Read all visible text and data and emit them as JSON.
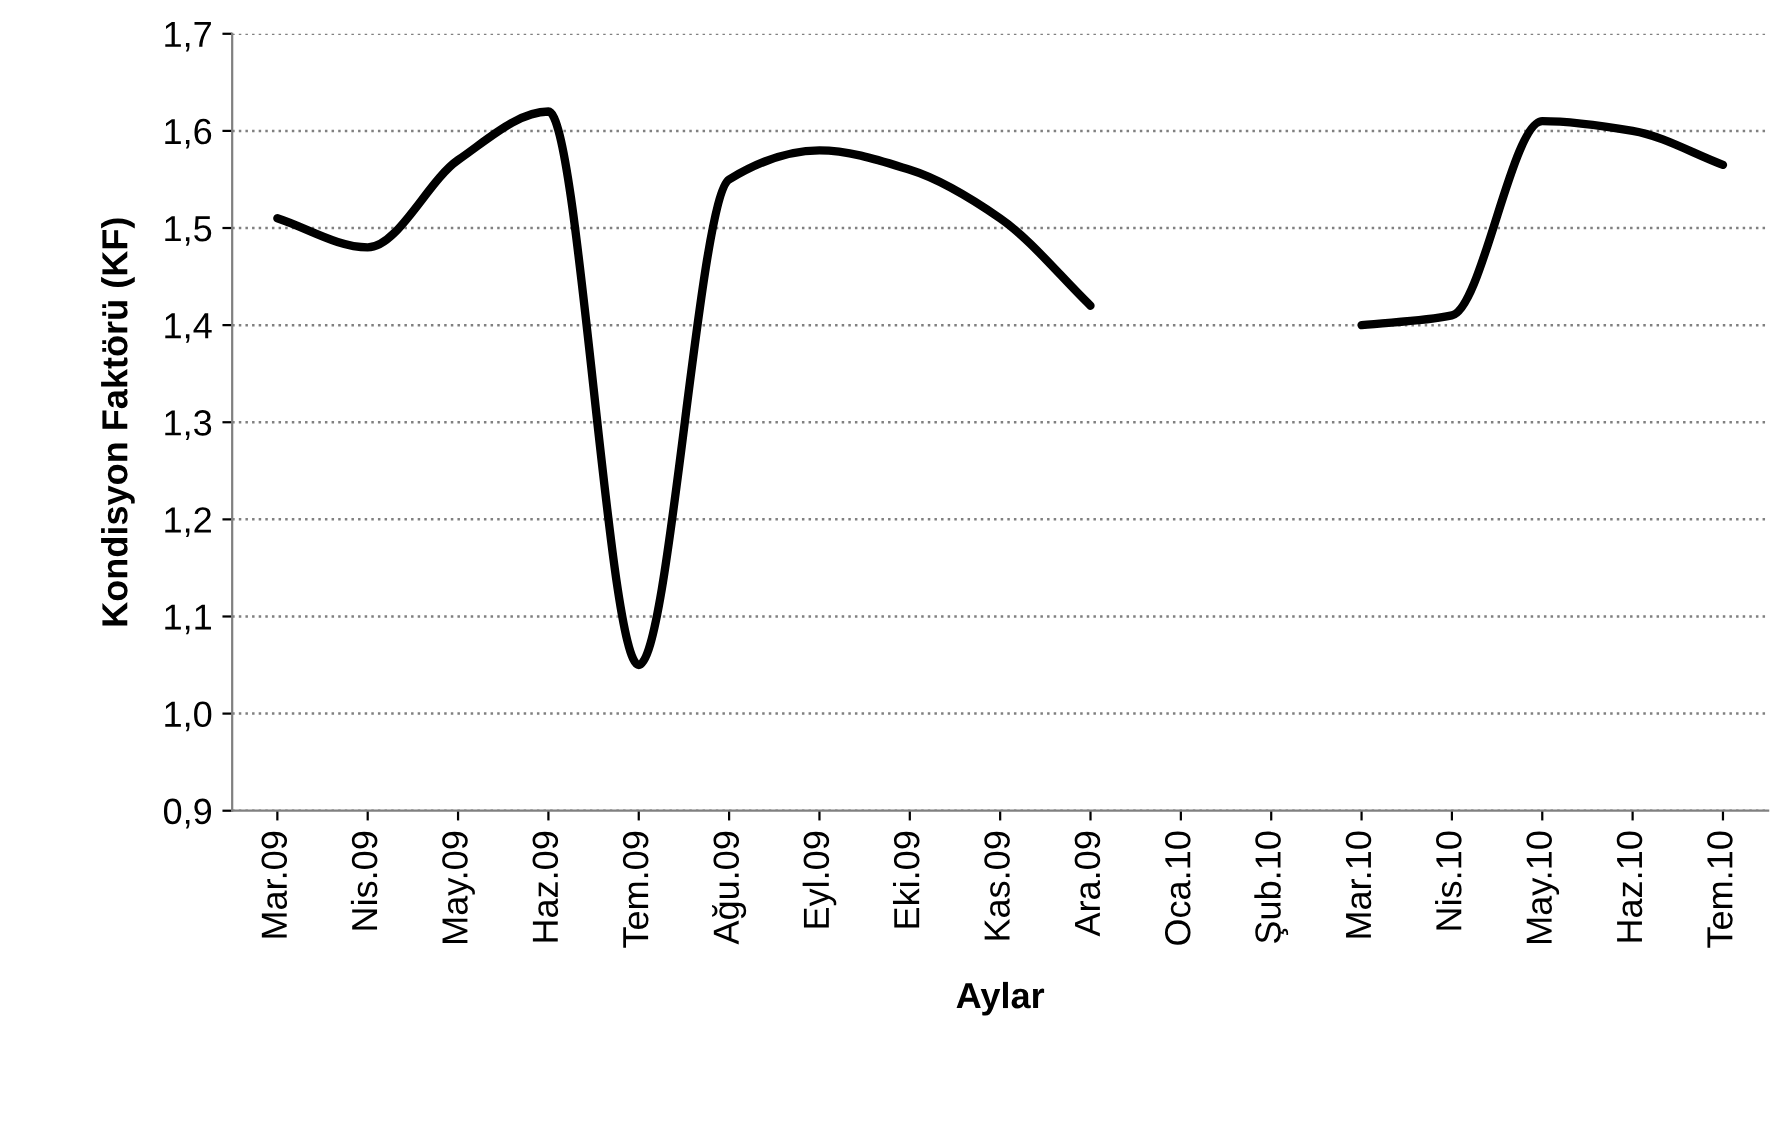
{
  "chart_data": {
    "type": "line",
    "xlabel": "Aylar",
    "ylabel": "Kondisyon Faktörü (KF)",
    "categories": [
      "Mar.09",
      "Nis.09",
      "May.09",
      "Haz.09",
      "Tem.09",
      "Ağu.09",
      "Eyl.09",
      "Eki.09",
      "Kas.09",
      "Ara.09",
      "Oca.10",
      "Şub.10",
      "Mar.10",
      "Nis.10",
      "May.10",
      "Haz.10",
      "Tem.10"
    ],
    "series": [
      {
        "color": "#000000",
        "values": [
          1.51,
          1.48,
          1.57,
          1.62,
          1.05,
          1.55,
          1.58,
          1.56,
          1.51,
          1.42,
          null,
          null,
          1.4,
          1.41,
          1.61,
          1.6,
          1.565
        ]
      }
    ],
    "ylim": [
      0.9,
      1.7
    ],
    "yticks": [
      {
        "value": 0.9,
        "label": "0,9"
      },
      {
        "value": 1.0,
        "label": "1,0"
      },
      {
        "value": 1.1,
        "label": "1,1"
      },
      {
        "value": 1.2,
        "label": "1,2"
      },
      {
        "value": 1.3,
        "label": "1,3"
      },
      {
        "value": 1.4,
        "label": "1,4"
      },
      {
        "value": 1.5,
        "label": "1,5"
      },
      {
        "value": 1.6,
        "label": "1,6"
      },
      {
        "value": 1.7,
        "label": "1,7"
      }
    ],
    "grid": "y",
    "legend": false,
    "marker": "none",
    "line_style": "solid"
  }
}
